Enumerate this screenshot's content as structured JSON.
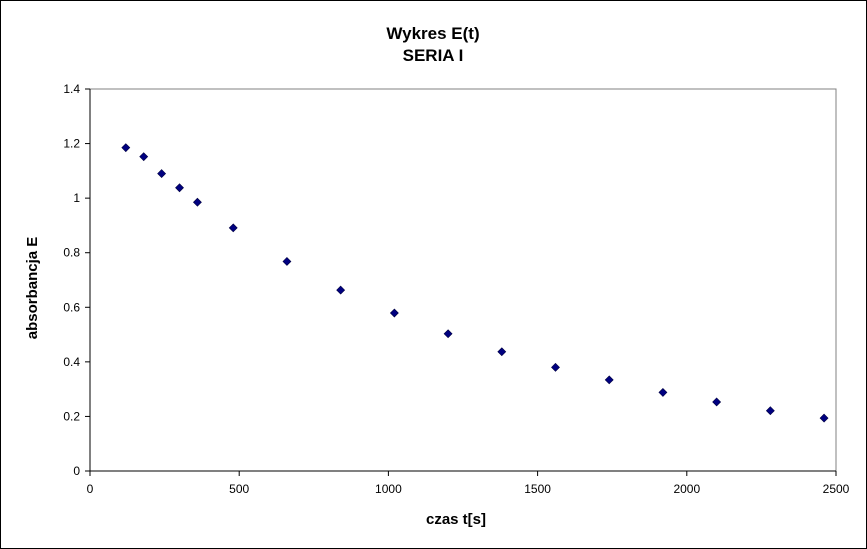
{
  "chart_data": {
    "type": "scatter",
    "title": "Wykres E(t)",
    "subtitle": "SERIA I",
    "xlabel": "czas t[s]",
    "ylabel": "absorbancja E",
    "xlim": [
      0,
      2500
    ],
    "ylim": [
      0,
      1.4
    ],
    "xticks": [
      "0",
      "500",
      "1000",
      "1500",
      "2000",
      "2500"
    ],
    "yticks": [
      "0",
      "0.2",
      "0.4",
      "0.6",
      "0.8",
      "1",
      "1.2",
      "1.4"
    ],
    "grid": false,
    "legend": "none",
    "marker": "diamond",
    "marker_color": "#000080",
    "series": [
      {
        "x": [
          120,
          180,
          240,
          300,
          360,
          480,
          660,
          840,
          1020,
          1200,
          1380,
          1560,
          1740,
          1920,
          2100,
          2280,
          2460
        ],
        "y": [
          1.185,
          1.152,
          1.09,
          1.038,
          0.985,
          0.891,
          0.768,
          0.663,
          0.579,
          0.503,
          0.437,
          0.38,
          0.334,
          0.288,
          0.253,
          0.221,
          0.194
        ]
      }
    ]
  }
}
